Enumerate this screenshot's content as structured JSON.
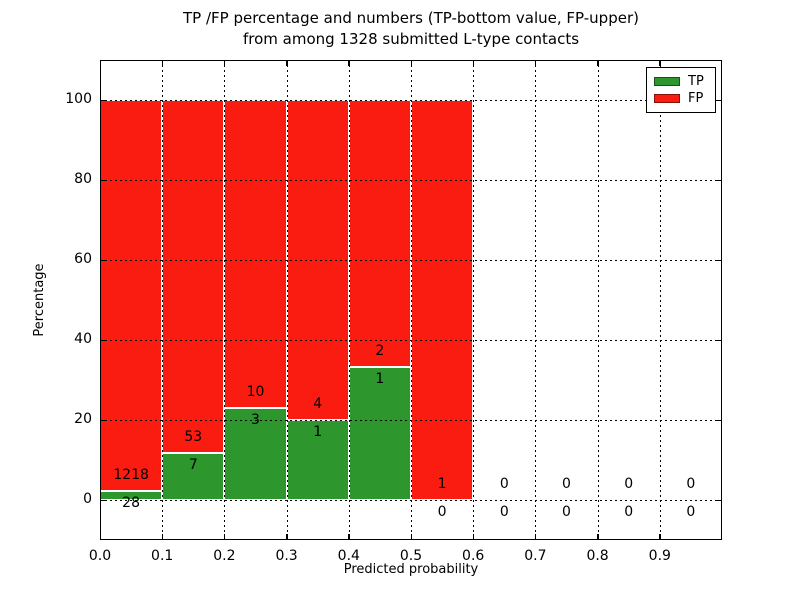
{
  "title": {
    "line1": "TP /FP percentage and numbers (TP-bottom value, FP-upper)",
    "line2": "from among 1328 submitted L-type contacts"
  },
  "axes": {
    "xlabel": "Predicted probability",
    "ylabel": "Percentage",
    "xtick_labels": [
      "0.0",
      "0.1",
      "0.2",
      "0.3",
      "0.4",
      "0.5",
      "0.6",
      "0.7",
      "0.8",
      "0.9"
    ],
    "yticks": [
      0,
      20,
      40,
      60,
      80,
      100
    ],
    "xlim": [
      0.0,
      1.0
    ],
    "ylim": [
      -10,
      110
    ],
    "grid": "dotted"
  },
  "legend": {
    "position": "upper right",
    "items": [
      {
        "label": "TP",
        "color": "#2d962d"
      },
      {
        "label": "FP",
        "color": "#fb1c11"
      }
    ]
  },
  "colors": {
    "tp_green": "#2d962d",
    "fp_red": "#fb1c11",
    "bar_edge": "#ffffff",
    "grid": "#000000",
    "background": "#ffffff"
  },
  "chart_data": {
    "type": "bar",
    "stacked": true,
    "title": "TP /FP percentage and numbers (TP-bottom value, FP-upper) from among 1328 submitted L-type contacts",
    "xlabel": "Predicted probability",
    "ylabel": "Percentage",
    "total_submitted": 1328,
    "bin_width": 0.1,
    "xlim": [
      0.0,
      1.0
    ],
    "ylim": [
      -10,
      110
    ],
    "legend_position": "upper right",
    "grid": "dotted",
    "annotation_note": "FP count shown above TP top, TP count shown below TP top; bars stack to 100%",
    "bins": [
      {
        "x0": 0.0,
        "x1": 0.1,
        "tp_count": 28,
        "fp_count": 1218,
        "tp_percent": 2.2,
        "fp_percent": 97.8
      },
      {
        "x0": 0.1,
        "x1": 0.2,
        "tp_count": 7,
        "fp_count": 53,
        "tp_percent": 11.7,
        "fp_percent": 88.3
      },
      {
        "x0": 0.2,
        "x1": 0.3,
        "tp_count": 3,
        "fp_count": 10,
        "tp_percent": 23.1,
        "fp_percent": 76.9
      },
      {
        "x0": 0.3,
        "x1": 0.4,
        "tp_count": 1,
        "fp_count": 4,
        "tp_percent": 20.0,
        "fp_percent": 80.0
      },
      {
        "x0": 0.4,
        "x1": 0.5,
        "tp_count": 1,
        "fp_count": 2,
        "tp_percent": 33.3,
        "fp_percent": 66.7
      },
      {
        "x0": 0.5,
        "x1": 0.6,
        "tp_count": 0,
        "fp_count": 1,
        "tp_percent": 0.0,
        "fp_percent": 100.0
      },
      {
        "x0": 0.6,
        "x1": 0.7,
        "tp_count": 0,
        "fp_count": 0,
        "tp_percent": 0.0,
        "fp_percent": 0.0
      },
      {
        "x0": 0.7,
        "x1": 0.8,
        "tp_count": 0,
        "fp_count": 0,
        "tp_percent": 0.0,
        "fp_percent": 0.0
      },
      {
        "x0": 0.8,
        "x1": 0.9,
        "tp_count": 0,
        "fp_count": 0,
        "tp_percent": 0.0,
        "fp_percent": 0.0
      },
      {
        "x0": 0.9,
        "x1": 1.0,
        "tp_count": 0,
        "fp_count": 0,
        "tp_percent": 0.0,
        "fp_percent": 0.0
      }
    ],
    "series": [
      {
        "name": "TP",
        "color": "#2d962d",
        "values": [
          28,
          7,
          3,
          1,
          1,
          0,
          0,
          0,
          0,
          0
        ]
      },
      {
        "name": "FP",
        "color": "#fb1c11",
        "values": [
          1218,
          53,
          10,
          4,
          2,
          1,
          0,
          0,
          0,
          0
        ]
      }
    ]
  }
}
